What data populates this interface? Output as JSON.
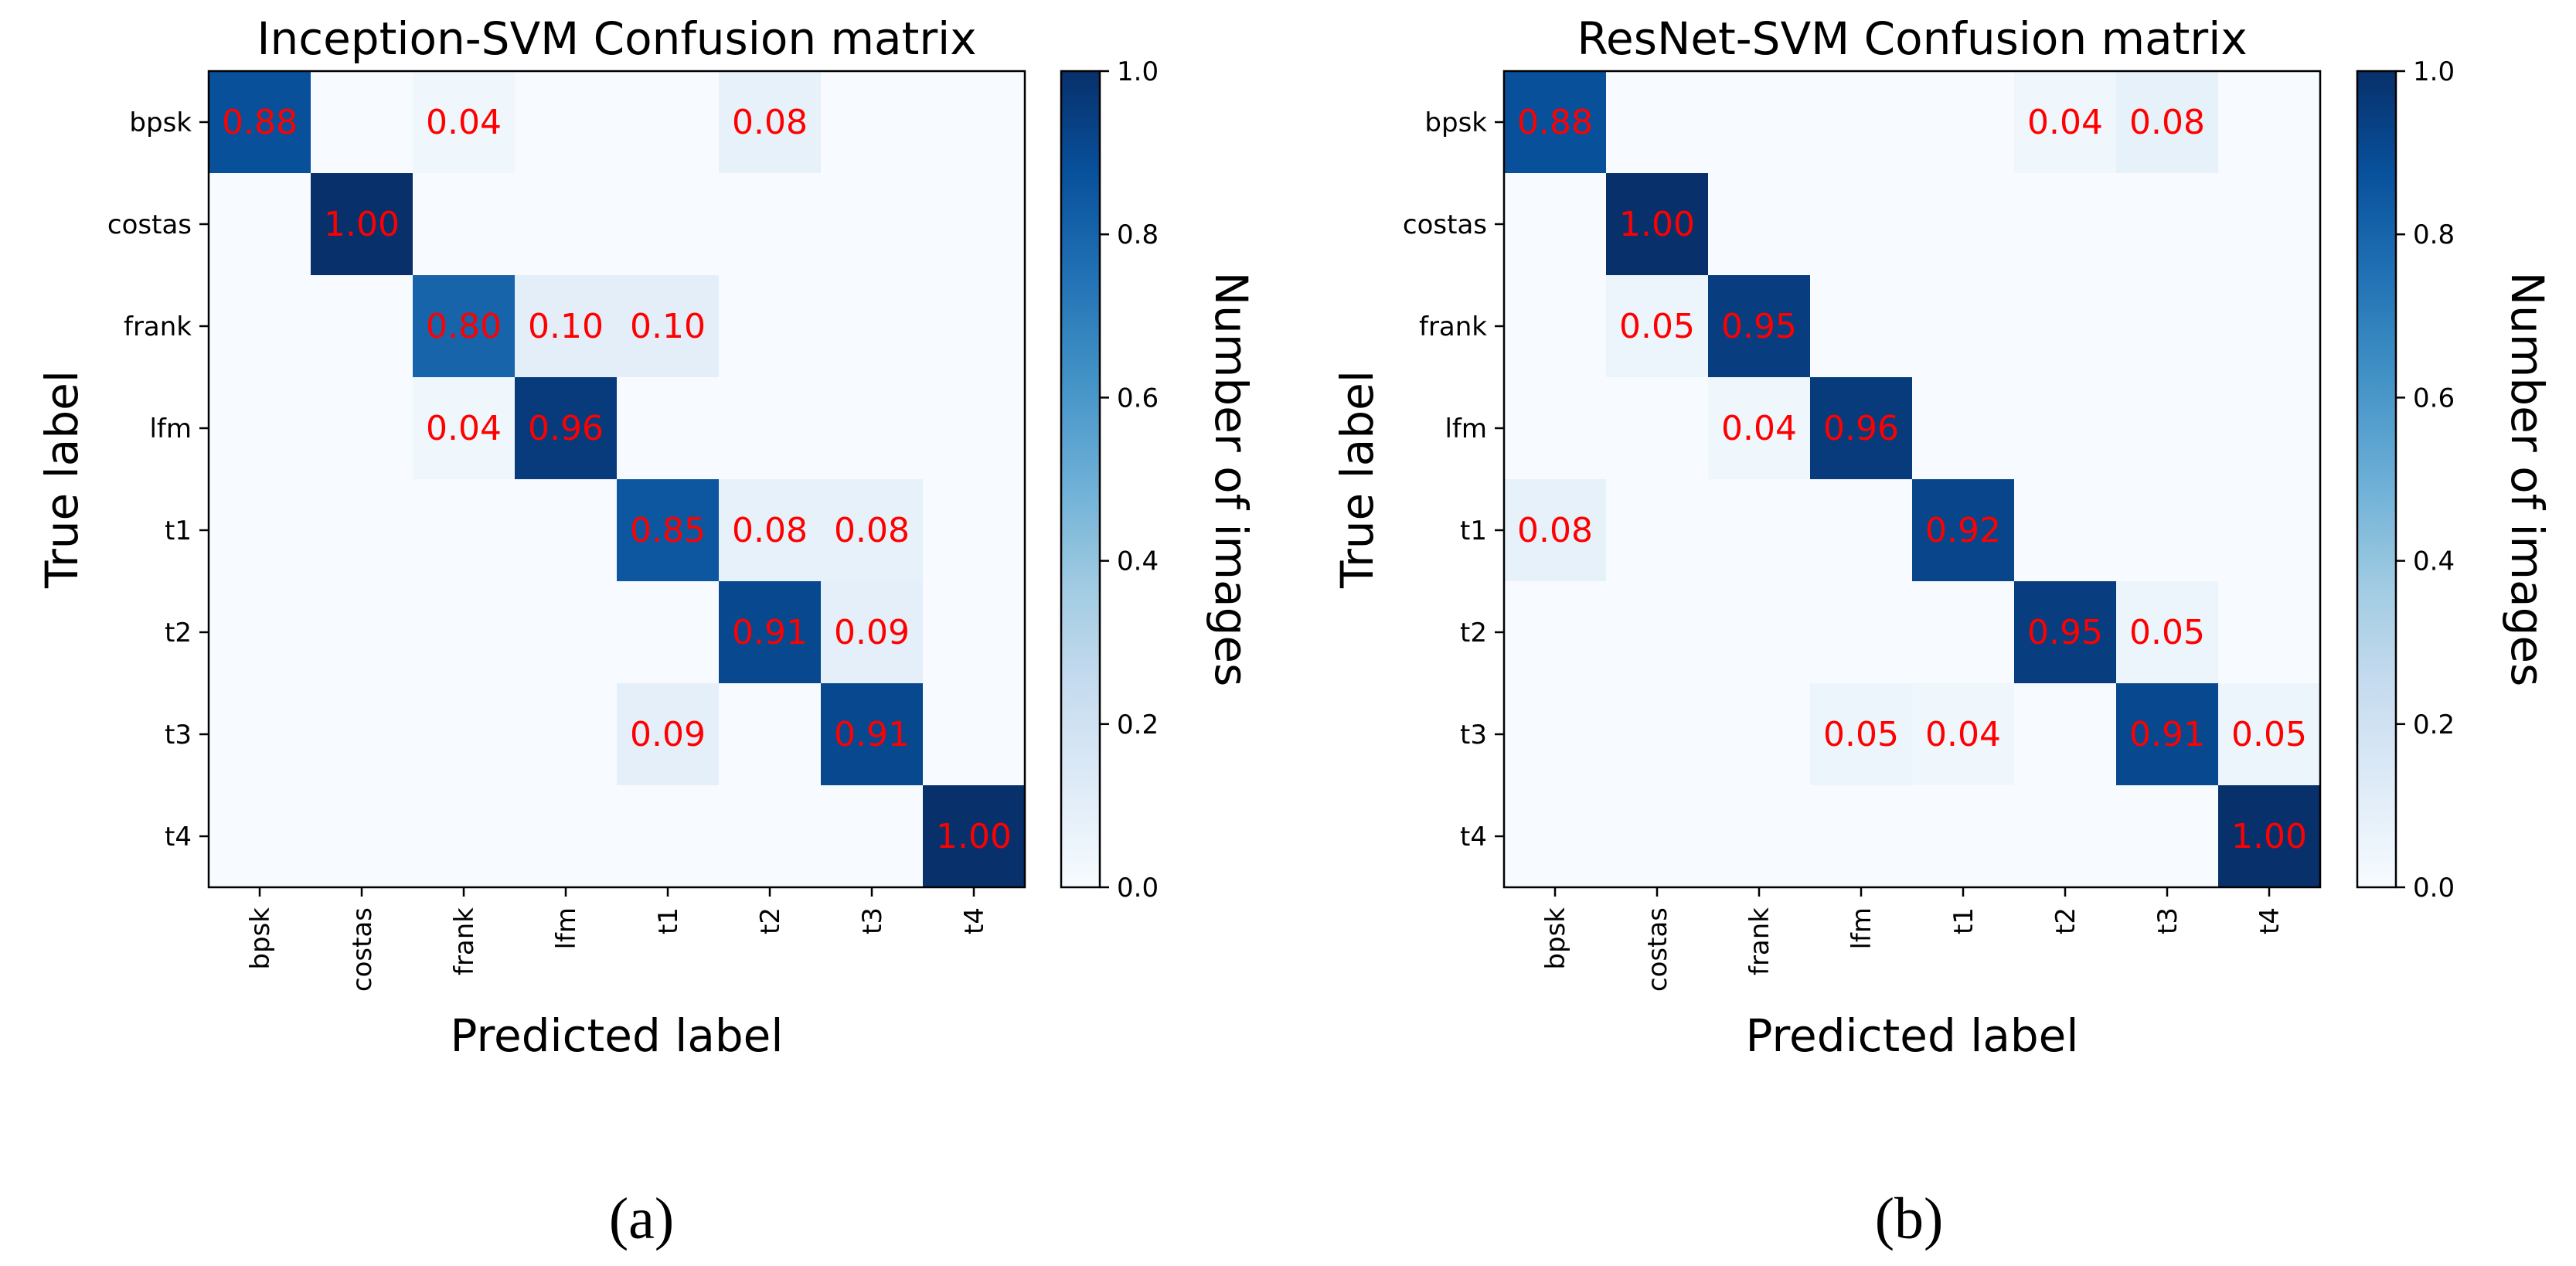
{
  "figure": {
    "panels": [
      {
        "label": "(a)"
      },
      {
        "label": "(b)"
      }
    ]
  },
  "chart_data": [
    {
      "type": "heatmap",
      "title": "Inception-SVM Confusion matrix",
      "xlabel": "Predicted label",
      "ylabel": "True label",
      "colorbar_label": "Number of images",
      "colorbar_ticks": [
        "0.0",
        "0.2",
        "0.4",
        "0.6",
        "0.8",
        "1.0"
      ],
      "colorbar_range": [
        0,
        1
      ],
      "x_categories": [
        "bpsk",
        "costas",
        "frank",
        "lfm",
        "t1",
        "t2",
        "t3",
        "t4"
      ],
      "y_categories": [
        "bpsk",
        "costas",
        "frank",
        "lfm",
        "t1",
        "t2",
        "t3",
        "t4"
      ],
      "values": [
        [
          0.88,
          null,
          0.04,
          null,
          null,
          0.08,
          null,
          null
        ],
        [
          null,
          1.0,
          null,
          null,
          null,
          null,
          null,
          null
        ],
        [
          null,
          null,
          0.8,
          0.1,
          0.1,
          null,
          null,
          null
        ],
        [
          null,
          null,
          0.04,
          0.96,
          null,
          null,
          null,
          null
        ],
        [
          null,
          null,
          null,
          null,
          0.85,
          0.08,
          0.08,
          null
        ],
        [
          null,
          null,
          null,
          null,
          null,
          0.91,
          0.09,
          null
        ],
        [
          null,
          null,
          null,
          null,
          0.09,
          null,
          0.91,
          null
        ],
        [
          null,
          null,
          null,
          null,
          null,
          null,
          null,
          1.0
        ]
      ],
      "value_label_color": "#ff0000",
      "colormap": "Blues"
    },
    {
      "type": "heatmap",
      "title": "ResNet-SVM Confusion matrix",
      "xlabel": "Predicted label",
      "ylabel": "True label",
      "colorbar_label": "Number of images",
      "colorbar_ticks": [
        "0.0",
        "0.2",
        "0.4",
        "0.6",
        "0.8",
        "1.0"
      ],
      "colorbar_range": [
        0,
        1
      ],
      "x_categories": [
        "bpsk",
        "costas",
        "frank",
        "lfm",
        "t1",
        "t2",
        "t3",
        "t4"
      ],
      "y_categories": [
        "bpsk",
        "costas",
        "frank",
        "lfm",
        "t1",
        "t2",
        "t3",
        "t4"
      ],
      "values": [
        [
          0.88,
          null,
          null,
          null,
          null,
          0.04,
          0.08,
          null
        ],
        [
          null,
          1.0,
          null,
          null,
          null,
          null,
          null,
          null
        ],
        [
          null,
          0.05,
          0.95,
          null,
          null,
          null,
          null,
          null
        ],
        [
          null,
          null,
          0.04,
          0.96,
          null,
          null,
          null,
          null
        ],
        [
          0.08,
          null,
          null,
          null,
          0.92,
          null,
          null,
          null
        ],
        [
          null,
          null,
          null,
          null,
          null,
          0.95,
          0.05,
          null
        ],
        [
          null,
          null,
          null,
          0.05,
          0.04,
          null,
          0.91,
          0.05
        ],
        [
          null,
          null,
          null,
          null,
          null,
          null,
          null,
          1.0
        ]
      ],
      "value_label_color": "#ff0000",
      "colormap": "Blues"
    }
  ]
}
